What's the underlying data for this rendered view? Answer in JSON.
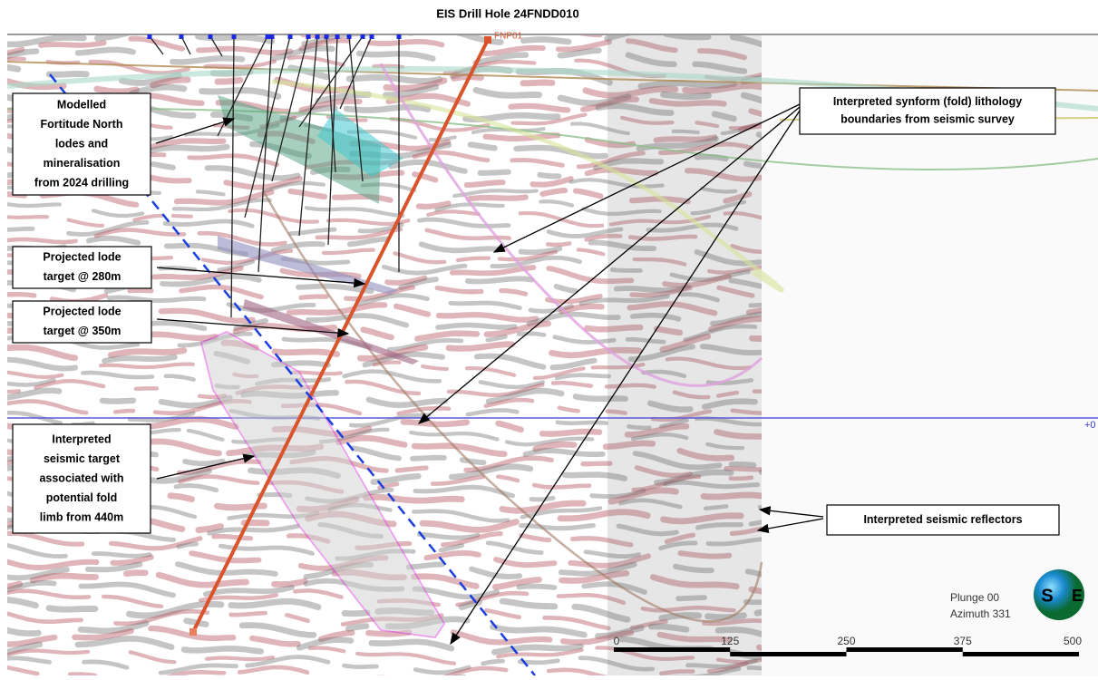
{
  "header": {
    "title": "EIS Drill Hole 24FNDD010"
  },
  "section": {
    "hole_label": "FNP01",
    "elevation_label": "+0"
  },
  "callouts": [
    {
      "lines": [
        "Modelled",
        "Fortitude North",
        "lodes and",
        "mineralisation",
        "from 2024 drilling"
      ]
    },
    {
      "lines": [
        "Projected lode",
        "target @ 280m"
      ]
    },
    {
      "lines": [
        "Projected lode",
        "target @ 350m"
      ]
    },
    {
      "lines": [
        "Interpreted",
        "seismic target",
        "associated with",
        "potential fold",
        "limb from 440m"
      ]
    },
    {
      "lines": [
        "Interpreted synform (fold) lithology",
        "boundaries from seismic survey"
      ]
    },
    {
      "lines": [
        "Interpreted seismic reflectors"
      ]
    }
  ],
  "scale_bar": {
    "labels": [
      "0",
      "125",
      "250",
      "375",
      "500"
    ]
  },
  "view": {
    "plunge": "Plunge 00",
    "azimuth": "Azimuth 331",
    "compass": [
      "S",
      "E"
    ]
  }
}
